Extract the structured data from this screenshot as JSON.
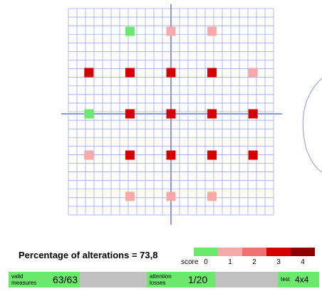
{
  "chart_data": {
    "type": "scatter",
    "grid": true,
    "grid_lines_x": 25,
    "grid_lines_y": 25,
    "points": [
      {
        "x": -4,
        "y": 8,
        "score": 0
      },
      {
        "x": 0,
        "y": 8,
        "score": 1
      },
      {
        "x": 4,
        "y": 8,
        "score": 1
      },
      {
        "x": -8,
        "y": 4,
        "score": 3
      },
      {
        "x": -4,
        "y": 4,
        "score": 3
      },
      {
        "x": 0,
        "y": 4,
        "score": 3
      },
      {
        "x": 4,
        "y": 4,
        "score": 3
      },
      {
        "x": 8,
        "y": 4,
        "score": 1
      },
      {
        "x": -8,
        "y": 0,
        "score": 0
      },
      {
        "x": -4,
        "y": 0,
        "score": 3
      },
      {
        "x": 0,
        "y": 0,
        "score": 3
      },
      {
        "x": 4,
        "y": 0,
        "score": 3
      },
      {
        "x": 8,
        "y": 0,
        "score": 3
      },
      {
        "x": -8,
        "y": -4,
        "score": 1
      },
      {
        "x": -4,
        "y": -4,
        "score": 3
      },
      {
        "x": 0,
        "y": -4,
        "score": 3
      },
      {
        "x": 4,
        "y": -4,
        "score": 3
      },
      {
        "x": 8,
        "y": -4,
        "score": 3
      },
      {
        "x": -4,
        "y": -8,
        "score": 1
      },
      {
        "x": 0,
        "y": -8,
        "score": 1
      },
      {
        "x": 4,
        "y": -8,
        "score": 1
      }
    ],
    "xlim": [
      -10,
      10
    ],
    "ylim": [
      -10,
      10
    ]
  },
  "colors": {
    "grid": "#9ea8ec",
    "axis": "#8a96e8",
    "score_0": "#6ce86c",
    "score_1": "#f6a9a9",
    "score_2": "#ee7070",
    "score_3": "#d40000",
    "score_4": "#8e0000",
    "status_green": "#6ce86c",
    "status_grey": "#c0c0c0"
  },
  "summary": {
    "percentage_label": "Percentage of alterations = 73,8"
  },
  "legend": {
    "title": "score",
    "values": [
      "0",
      "1",
      "2",
      "3",
      "4"
    ]
  },
  "status": {
    "valid_label": "valid\nmeasures",
    "valid_value": "63/63",
    "attention_label": "attention\nlosses",
    "attention_value": "1/20",
    "test_label": "test",
    "test_value": "4x4"
  }
}
